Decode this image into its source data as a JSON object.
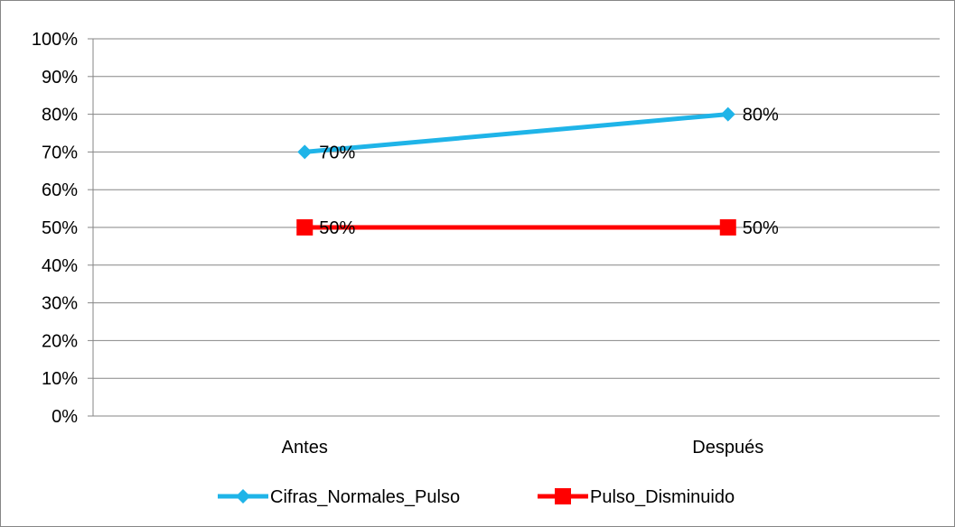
{
  "chart_data": {
    "type": "line",
    "categories": [
      "Antes",
      "Después"
    ],
    "series": [
      {
        "name": "Cifras_Normales_Pulso",
        "values": [
          70,
          80
        ],
        "labels": [
          "70%",
          "80%"
        ],
        "color": "#1fb4e8",
        "marker": "diamond"
      },
      {
        "name": "Pulso_Disminuido",
        "values": [
          50,
          50
        ],
        "labels": [
          "50%",
          "50%"
        ],
        "color": "#ff0000",
        "marker": "square"
      }
    ],
    "ylim": [
      0,
      100
    ],
    "yticks": [
      "0%",
      "10%",
      "20%",
      "30%",
      "40%",
      "50%",
      "60%",
      "70%",
      "80%",
      "90%",
      "100%"
    ],
    "grid": true,
    "legend_position": "bottom",
    "title": "",
    "xlabel": "",
    "ylabel": ""
  }
}
